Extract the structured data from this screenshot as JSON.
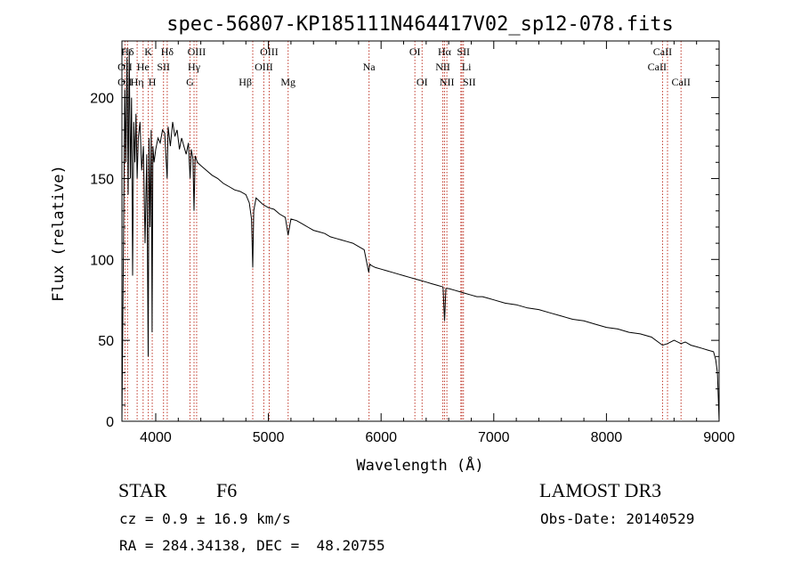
{
  "chart_data": {
    "type": "line",
    "title": "spec-56807-KP185111N464417V02_sp12-078.fits",
    "xlabel": "Wavelength (Å)",
    "ylabel": "Flux (relative)",
    "xlim": [
      3700,
      9000
    ],
    "ylim": [
      0,
      235
    ],
    "x_ticks": [
      4000,
      5000,
      6000,
      7000,
      8000,
      9000
    ],
    "y_ticks": [
      0,
      50,
      100,
      150,
      200
    ],
    "series": [
      {
        "name": "spectrum",
        "x": [
          3700,
          3715,
          3725,
          3735,
          3745,
          3755,
          3765,
          3775,
          3785,
          3795,
          3805,
          3815,
          3825,
          3835,
          3845,
          3860,
          3875,
          3890,
          3905,
          3920,
          3933,
          3940,
          3950,
          3960,
          3968,
          3975,
          3985,
          4000,
          4020,
          4040,
          4060,
          4080,
          4101,
          4110,
          4130,
          4150,
          4170,
          4190,
          4210,
          4230,
          4250,
          4270,
          4290,
          4305,
          4315,
          4330,
          4340,
          4350,
          4370,
          4400,
          4450,
          4500,
          4550,
          4600,
          4650,
          4700,
          4750,
          4800,
          4830,
          4850,
          4861,
          4870,
          4890,
          4920,
          4950,
          5000,
          5050,
          5100,
          5150,
          5175,
          5200,
          5250,
          5300,
          5350,
          5400,
          5450,
          5500,
          5550,
          5600,
          5650,
          5700,
          5750,
          5800,
          5850,
          5890,
          5900,
          5920,
          5950,
          6000,
          6050,
          6100,
          6150,
          6200,
          6250,
          6300,
          6350,
          6400,
          6450,
          6500,
          6550,
          6563,
          6575,
          6600,
          6650,
          6700,
          6750,
          6800,
          6850,
          6900,
          6950,
          7000,
          7100,
          7200,
          7300,
          7400,
          7500,
          7600,
          7700,
          7800,
          7900,
          8000,
          8100,
          8200,
          8300,
          8400,
          8498,
          8542,
          8600,
          8662,
          8700,
          8750,
          8800,
          8850,
          8900,
          8950,
          8970,
          8985,
          9000
        ],
        "y": [
          0,
          120,
          205,
          160,
          225,
          140,
          230,
          150,
          200,
          90,
          185,
          160,
          190,
          150,
          175,
          185,
          155,
          170,
          110,
          165,
          40,
          175,
          120,
          180,
          55,
          170,
          160,
          168,
          175,
          172,
          180,
          178,
          150,
          182,
          170,
          185,
          176,
          180,
          168,
          175,
          170,
          165,
          172,
          150,
          168,
          162,
          130,
          164,
          160,
          158,
          155,
          152,
          150,
          147,
          145,
          143,
          142,
          140,
          135,
          125,
          95,
          130,
          138,
          136,
          134,
          132,
          131,
          128,
          126,
          115,
          125,
          124,
          122,
          120,
          118,
          117,
          116,
          114,
          113,
          112,
          111,
          110,
          108,
          106,
          92,
          97,
          96,
          95,
          94,
          93,
          92,
          91,
          90,
          89,
          88,
          87,
          86,
          85,
          84,
          83,
          62,
          82,
          82,
          81,
          80,
          79,
          78,
          77,
          77,
          76,
          75,
          73,
          72,
          70,
          69,
          67,
          65,
          63,
          62,
          60,
          58,
          57,
          55,
          54,
          52,
          47,
          48,
          50,
          48,
          49,
          47,
          46,
          45,
          44,
          43,
          38,
          30,
          0
        ]
      }
    ],
    "line_markers": [
      {
        "label": "Hδ",
        "x": 3750,
        "row": 1,
        "side": "center"
      },
      {
        "label": "K",
        "x": 3934,
        "row": 1,
        "side": "center"
      },
      {
        "label": "Hδ",
        "x": 4102,
        "row": 1,
        "side": "center"
      },
      {
        "label": "OIII",
        "x": 4363,
        "row": 1,
        "side": "center"
      },
      {
        "label": "OIII",
        "x": 5007,
        "row": 1,
        "side": "center"
      },
      {
        "label": "OI",
        "x": 6300,
        "row": 1,
        "side": "center"
      },
      {
        "label": "Hα",
        "x": 6563,
        "row": 1,
        "side": "center"
      },
      {
        "label": "SII",
        "x": 6731,
        "row": 1,
        "side": "center"
      },
      {
        "label": "CaII",
        "x": 8498,
        "row": 1,
        "side": "center"
      },
      {
        "label": "OII",
        "x": 3727,
        "row": 2,
        "side": "center"
      },
      {
        "label": "He",
        "x": 3888,
        "row": 2,
        "side": "center"
      },
      {
        "label": "SII",
        "x": 4069,
        "row": 2,
        "side": "center"
      },
      {
        "label": "Hγ",
        "x": 4340,
        "row": 2,
        "side": "center"
      },
      {
        "label": "OIII",
        "x": 4959,
        "row": 2,
        "side": "center"
      },
      {
        "label": "Na",
        "x": 5893,
        "row": 2,
        "side": "center"
      },
      {
        "label": "NII",
        "x": 6548,
        "row": 2,
        "side": "center"
      },
      {
        "label": "Li",
        "x": 6708,
        "row": 2,
        "side": "right"
      },
      {
        "label": "CaII",
        "x": 8542,
        "row": 2,
        "side": "left"
      },
      {
        "label": "OII",
        "x": 3727,
        "row": 3,
        "side": "center"
      },
      {
        "label": "Hη",
        "x": 3835,
        "row": 3,
        "side": "center"
      },
      {
        "label": "H",
        "x": 3969,
        "row": 3,
        "side": "center"
      },
      {
        "label": "G",
        "x": 4304,
        "row": 3,
        "side": "center"
      },
      {
        "label": "Hβ",
        "x": 4861,
        "row": 3,
        "side": "left"
      },
      {
        "label": "Mg",
        "x": 5175,
        "row": 3,
        "side": "center"
      },
      {
        "label": "OI",
        "x": 6364,
        "row": 3,
        "side": "center"
      },
      {
        "label": "NII",
        "x": 6584,
        "row": 3,
        "side": "center"
      },
      {
        "label": "SII",
        "x": 6717,
        "row": 3,
        "side": "right"
      },
      {
        "label": "CaII",
        "x": 8662,
        "row": 3,
        "side": "center"
      }
    ]
  },
  "info": {
    "object_class": "STAR",
    "subclass": "F6",
    "survey": "LAMOST DR3",
    "redshift": "cz = 0.9 ± 16.9 km/s",
    "obs_date": "Obs-Date: 20140529",
    "coords": "RA = 284.34138, DEC =  48.20755"
  },
  "colors": {
    "spectrum": "#000000",
    "marker_lines": "#c0392b",
    "background": "#ffffff"
  }
}
